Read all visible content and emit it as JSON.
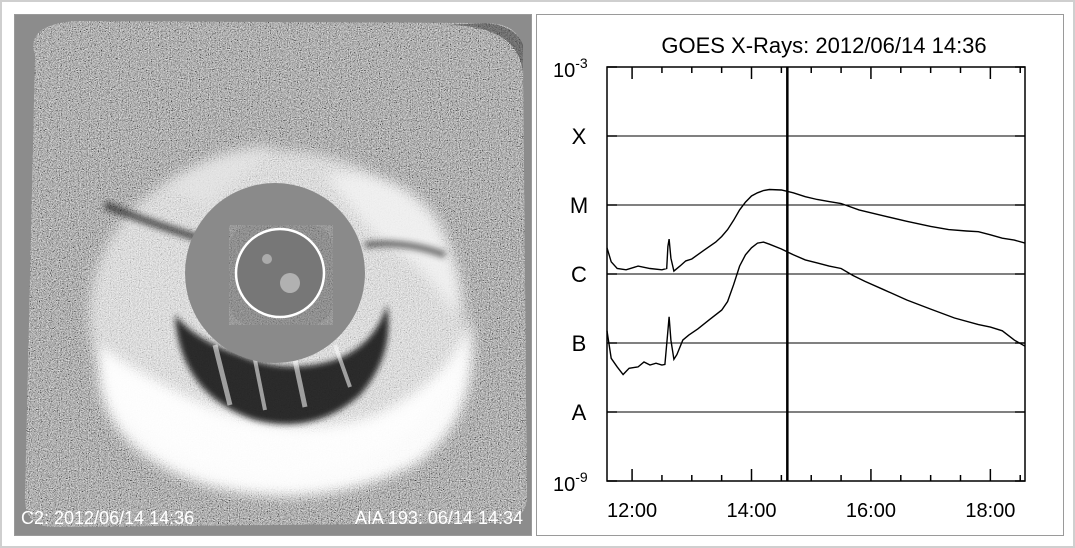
{
  "left_panel": {
    "caption_left": "C2: 2012/06/14 14:36",
    "caption_right": "AIA 193: 06/14 14:34"
  },
  "chart_data": {
    "type": "line",
    "title": "GOES X-Rays: 2012/06/14 14:36",
    "xlabel": "",
    "ylabel": "",
    "x_unit": "hours UT",
    "xlim": [
      11.58,
      18.58
    ],
    "x_ticks": [
      12,
      14,
      16,
      18
    ],
    "x_tick_labels": [
      "12:00",
      "14:00",
      "16:00",
      "18:00"
    ],
    "y_scale": "log",
    "ylim": [
      1e-09,
      0.001
    ],
    "y_top_label": {
      "base": "10",
      "exp": "-3"
    },
    "y_bottom_label": {
      "base": "10",
      "exp": "-9"
    },
    "flare_classes": [
      {
        "label": "X",
        "value": 0.0001
      },
      {
        "label": "M",
        "value": 1e-05
      },
      {
        "label": "C",
        "value": 1e-06
      },
      {
        "label": "B",
        "value": 1e-07
      },
      {
        "label": "A",
        "value": 1e-08
      }
    ],
    "grid": true,
    "current_time_marker": 14.6,
    "series": [
      {
        "x": [
          11.58,
          11.65,
          11.75,
          11.9,
          12.1,
          12.3,
          12.5,
          12.58,
          12.6,
          12.62,
          12.65,
          12.7,
          12.8,
          12.9,
          13.0,
          13.2,
          13.4,
          13.5,
          13.6,
          13.7,
          13.8,
          13.9,
          14.0,
          14.1,
          14.2,
          14.3,
          14.5,
          14.7,
          14.9,
          15.1,
          15.3,
          15.5,
          15.8,
          16.2,
          16.6,
          17.0,
          17.3,
          17.6,
          17.8,
          18.0,
          18.2,
          18.4,
          18.58
        ],
        "y": [
          2.4e-06,
          1.5e-06,
          1.2e-06,
          1.15e-06,
          1.3e-06,
          1.2e-06,
          1.15e-06,
          1.2e-06,
          2.5e-06,
          3.2e-06,
          1.7e-06,
          1.1e-06,
          1.3e-06,
          1.55e-06,
          1.65e-06,
          2.2e-06,
          2.9e-06,
          3.5e-06,
          4.4e-06,
          6e-06,
          8.5e-06,
          1.1e-05,
          1.35e-05,
          1.5e-05,
          1.62e-05,
          1.68e-05,
          1.65e-05,
          1.5e-05,
          1.32e-05,
          1.2e-05,
          1.12e-05,
          1.05e-05,
          8.5e-06,
          7e-06,
          5.8e-06,
          4.9e-06,
          4.4e-06,
          4.2e-06,
          4.1e-06,
          3.7e-06,
          3.3e-06,
          3.1e-06,
          2.8e-06
        ]
      },
      {
        "x": [
          11.58,
          11.65,
          11.75,
          11.85,
          11.95,
          12.1,
          12.2,
          12.3,
          12.4,
          12.5,
          12.55,
          12.6,
          12.62,
          12.65,
          12.7,
          12.75,
          12.85,
          12.95,
          13.1,
          13.3,
          13.5,
          13.6,
          13.7,
          13.8,
          13.9,
          14.0,
          14.1,
          14.2,
          14.3,
          14.5,
          14.7,
          14.9,
          15.1,
          15.3,
          15.5,
          15.7,
          15.9,
          16.2,
          16.6,
          17.0,
          17.4,
          17.8,
          18.0,
          18.2,
          18.4,
          18.58
        ],
        "y": [
          1.5e-07,
          6e-08,
          4.5e-08,
          3.5e-08,
          4.3e-08,
          4.5e-08,
          5.3e-08,
          4.8e-08,
          5.1e-08,
          4.8e-08,
          4.9e-08,
          1.5e-07,
          2.4e-07,
          1.1e-07,
          5.8e-08,
          6.8e-08,
          1.1e-07,
          1.3e-07,
          1.6e-07,
          2.2e-07,
          3e-07,
          4e-07,
          7e-07,
          1.3e-06,
          1.9e-06,
          2.4e-06,
          2.8e-06,
          2.9e-06,
          2.7e-06,
          2.3e-06,
          1.9e-06,
          1.6e-06,
          1.45e-06,
          1.3e-06,
          1.2e-06,
          9.5e-07,
          7.8e-07,
          6e-07,
          4.2e-07,
          3.1e-07,
          2.3e-07,
          1.85e-07,
          1.7e-07,
          1.5e-07,
          1.1e-07,
          9e-08
        ]
      }
    ]
  }
}
